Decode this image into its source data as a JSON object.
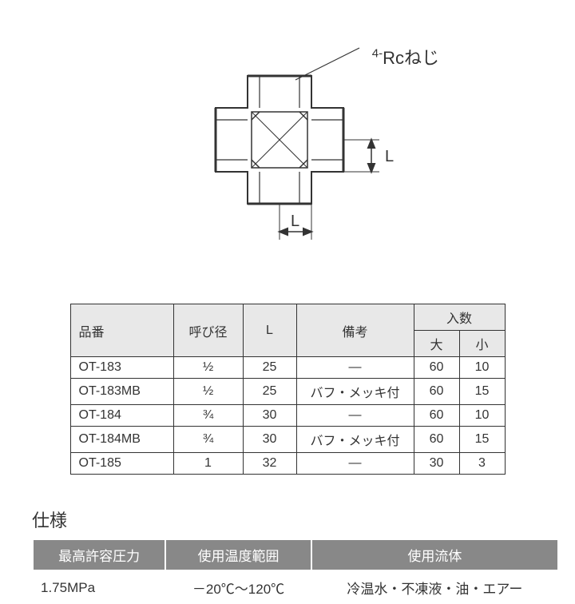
{
  "diagram": {
    "annotation_prefix": "4-",
    "annotation_text": "Rcねじ",
    "dim_label": "L",
    "stroke": "#333333",
    "stroke_width": 2
  },
  "main_table": {
    "headers": {
      "part": "品番",
      "dia": "呼び径",
      "L": "L",
      "remark": "備考",
      "qty": "入数",
      "qty_large": "大",
      "qty_small": "小"
    },
    "rows": [
      {
        "part": "OT-183",
        "dia": "½",
        "L": "25",
        "remark": "―",
        "large": "60",
        "small": "10"
      },
      {
        "part": "OT-183MB",
        "dia": "½",
        "L": "25",
        "remark": "バフ・メッキ付",
        "large": "60",
        "small": "15"
      },
      {
        "part": "OT-184",
        "dia": "¾",
        "L": "30",
        "remark": "―",
        "large": "60",
        "small": "10"
      },
      {
        "part": "OT-184MB",
        "dia": "¾",
        "L": "30",
        "remark": "バフ・メッキ付",
        "large": "60",
        "small": "15"
      },
      {
        "part": "OT-185",
        "dia": "1",
        "L": "32",
        "remark": "―",
        "large": "30",
        "small": "3"
      }
    ]
  },
  "spec": {
    "title": "仕様",
    "headers": {
      "pressure": "最高許容圧力",
      "temp": "使用温度範囲",
      "fluid": "使用流体"
    },
    "values": {
      "pressure": "1.75MPa",
      "temp": "－20℃～120℃",
      "fluid": "冷温水・不凍液・油・エアー"
    }
  }
}
